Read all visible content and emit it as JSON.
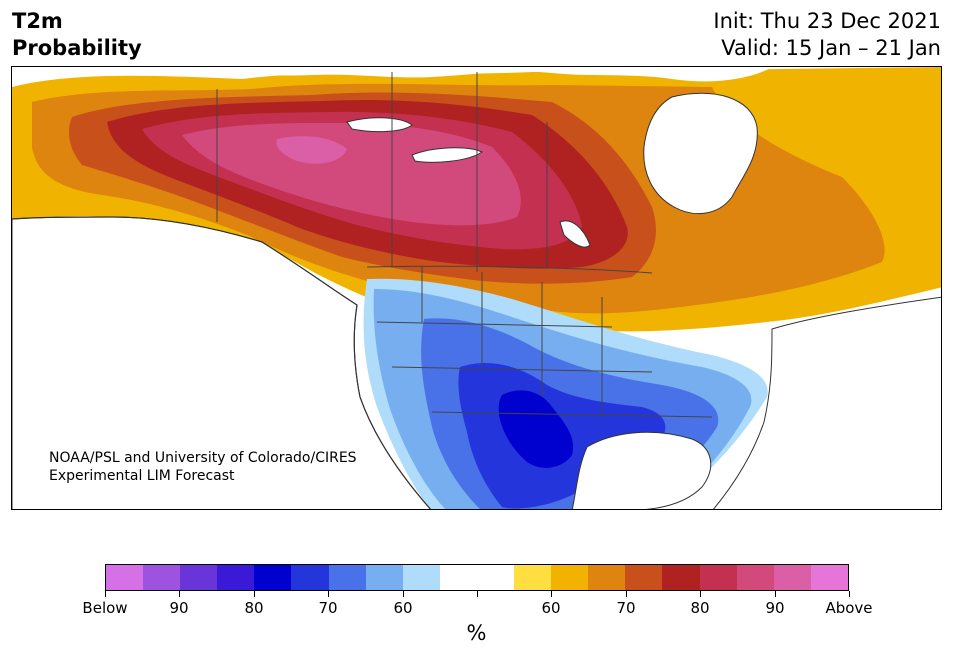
{
  "header": {
    "variable": "T2m",
    "product": "Probability",
    "init": "Init: Thu 23 Dec 2021",
    "valid": "Valid: 15 Jan – 21 Jan"
  },
  "credit": {
    "line1": "NOAA/PSL and University of Colorado/CIRES",
    "line2": "Experimental LIM Forecast"
  },
  "colorbar": {
    "colors": [
      "#d670e6",
      "#9d52e0",
      "#6a35d8",
      "#3a1ad6",
      "#0000cf",
      "#2436db",
      "#4a72e8",
      "#76aef0",
      "#aedcfa",
      "#ffffff",
      "#ffffff",
      "#ffde40",
      "#f2b300",
      "#de8510",
      "#c8501a",
      "#b02222",
      "#c43050",
      "#d24a7c",
      "#db5fa6",
      "#e575d6"
    ],
    "labels": [
      "Below",
      "90",
      "80",
      "70",
      "60",
      "60",
      "70",
      "80",
      "90",
      "Above"
    ],
    "unit": "%"
  },
  "map_colors": {
    "land": "#ffffff",
    "outline": "#333333"
  }
}
